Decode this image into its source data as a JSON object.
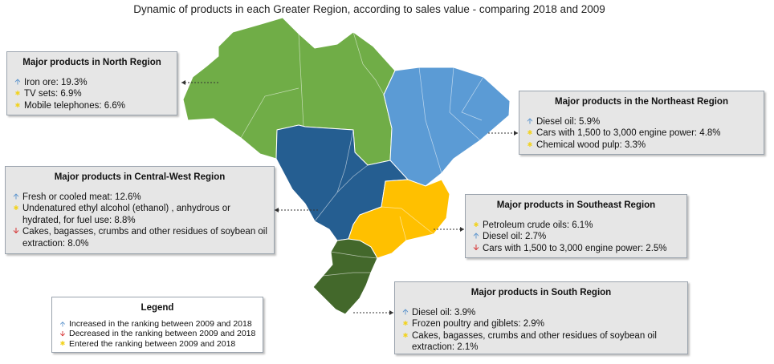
{
  "title": "Dynamic of products in each Greater Region, according to sales value - comparing 2018 and 2009",
  "colors": {
    "north": "#70ad47",
    "northeast": "#5b9bd5",
    "central_west": "#255e91",
    "southeast": "#ffc000",
    "south": "#43682b",
    "up_arrow": "#5b93cc",
    "down_arrow": "#d42020",
    "star": "#f2d21a"
  },
  "regions": {
    "north": {
      "heading": "Major products in North Region",
      "items": [
        {
          "icon": "up-arrow-icon",
          "text": "Iron ore: 19.3%"
        },
        {
          "icon": "star-icon",
          "text": "TV sets: 6.9%"
        },
        {
          "icon": "star-icon",
          "text": "Mobile telephones: 6.6%"
        }
      ]
    },
    "northeast": {
      "heading": "Major products in the Northeast Region",
      "items": [
        {
          "icon": "up-arrow-icon",
          "text": "Diesel oil: 5.9%"
        },
        {
          "icon": "star-icon",
          "text": "Cars with 1,500 to 3,000 engine power: 4.8%"
        },
        {
          "icon": "star-icon",
          "text": "Chemical wood pulp: 3.3%"
        }
      ]
    },
    "central_west": {
      "heading": "Major products in Central-West Region",
      "items": [
        {
          "icon": "up-arrow-icon",
          "text": "Fresh or cooled meat: 12.6%"
        },
        {
          "icon": "star-icon",
          "text": "Undenatured ethyl alcohol (ethanol) , anhydrous or hydrated, for fuel use: 8.8%"
        },
        {
          "icon": "down-arrow-icon",
          "text": "Cakes, bagasses, crumbs and other residues of soybean oil extraction: 8.0%"
        }
      ]
    },
    "southeast": {
      "heading": "Major products in Southeast Region",
      "items": [
        {
          "icon": "star-icon",
          "text": "Petroleum crude oils: 6.1%"
        },
        {
          "icon": "up-arrow-icon",
          "text": "Diesel oil: 2.7%"
        },
        {
          "icon": "down-arrow-icon",
          "text": "Cars with 1,500 to 3,000 engine power: 2.5%"
        }
      ]
    },
    "south": {
      "heading": "Major products in South Region",
      "items": [
        {
          "icon": "up-arrow-icon",
          "text": "Diesel oil: 3.9%"
        },
        {
          "icon": "star-icon",
          "text": "Frozen poultry and giblets: 2.9%"
        },
        {
          "icon": "star-icon",
          "text": "Cakes, bagasses, crumbs and other residues of soybean oil extraction: 2.1%"
        }
      ]
    }
  },
  "legend": {
    "heading": "Legend",
    "items": [
      {
        "icon": "up-arrow-icon",
        "text": "Increased in the ranking between 2009 and 2018"
      },
      {
        "icon": "down-arrow-icon",
        "text": "Decreased in the ranking between 2009 and 2018"
      },
      {
        "icon": "star-icon",
        "text": "Entered the ranking between 2009 and 2018"
      }
    ]
  }
}
